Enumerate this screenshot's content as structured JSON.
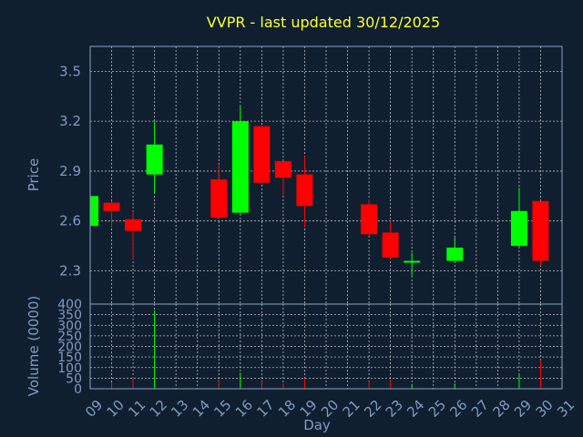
{
  "chart_data": {
    "type": "candlestick",
    "title": "VVPR - last updated 30/12/2025",
    "xlabel": "Day",
    "ylabel": "Price",
    "volume_ylabel": "Volume (0000)",
    "ylim": [
      2.1,
      3.65
    ],
    "yticks": [
      "3.5",
      "3.2",
      "2.9",
      "2.6",
      "2.3"
    ],
    "yticks_values": [
      3.5,
      3.2,
      2.9,
      2.6,
      2.3
    ],
    "volume_ylim": [
      0,
      400
    ],
    "volume_ticks": [
      "400",
      "350",
      "300",
      "250",
      "200",
      "150",
      "100",
      "50",
      "0"
    ],
    "volume_ticks_values": [
      400,
      350,
      300,
      250,
      200,
      150,
      100,
      50,
      0
    ],
    "days": [
      "09",
      "10",
      "11",
      "12",
      "13",
      "14",
      "15",
      "16",
      "17",
      "18",
      "19",
      "20",
      "21",
      "22",
      "23",
      "24",
      "25",
      "26",
      "27",
      "28",
      "29",
      "30",
      "31"
    ],
    "up_color": "#00ff00",
    "down_color": "#ff0000",
    "grid": true,
    "candles": [
      {
        "day": "09",
        "open": 2.57,
        "close": 2.75,
        "high": 2.75,
        "low": 2.57,
        "volume": 20
      },
      {
        "day": "10",
        "open": 2.71,
        "close": 2.66,
        "high": 2.72,
        "low": 2.56,
        "volume": 30
      },
      {
        "day": "11",
        "open": 2.61,
        "close": 2.54,
        "high": 2.66,
        "low": 2.37,
        "volume": 55
      },
      {
        "day": "12",
        "open": 2.88,
        "close": 3.06,
        "high": 3.2,
        "low": 2.77,
        "volume": 370
      },
      {
        "day": "15",
        "open": 2.85,
        "close": 2.62,
        "high": 2.94,
        "low": 2.61,
        "volume": 45
      },
      {
        "day": "16",
        "open": 2.65,
        "close": 3.2,
        "high": 3.29,
        "low": 2.64,
        "volume": 75
      },
      {
        "day": "17",
        "open": 3.17,
        "close": 2.83,
        "high": 3.17,
        "low": 2.82,
        "volume": 35
      },
      {
        "day": "18",
        "open": 2.96,
        "close": 2.86,
        "high": 2.96,
        "low": 2.75,
        "volume": 25
      },
      {
        "day": "19",
        "open": 2.88,
        "close": 2.69,
        "high": 2.99,
        "low": 2.56,
        "volume": 50
      },
      {
        "day": "22",
        "open": 2.7,
        "close": 2.52,
        "high": 2.73,
        "low": 2.51,
        "volume": 35
      },
      {
        "day": "23",
        "open": 2.53,
        "close": 2.38,
        "high": 2.6,
        "low": 2.37,
        "volume": 45
      },
      {
        "day": "24",
        "open": 2.36,
        "close": 2.36,
        "high": 2.41,
        "low": 2.27,
        "volume": 20
      },
      {
        "day": "26",
        "open": 2.36,
        "close": 2.44,
        "high": 2.5,
        "low": 2.35,
        "volume": 25
      },
      {
        "day": "29",
        "open": 2.45,
        "close": 2.66,
        "high": 2.8,
        "low": 2.44,
        "volume": 70
      },
      {
        "day": "30",
        "open": 2.72,
        "close": 2.36,
        "high": 2.72,
        "low": 2.33,
        "volume": 135
      }
    ]
  }
}
